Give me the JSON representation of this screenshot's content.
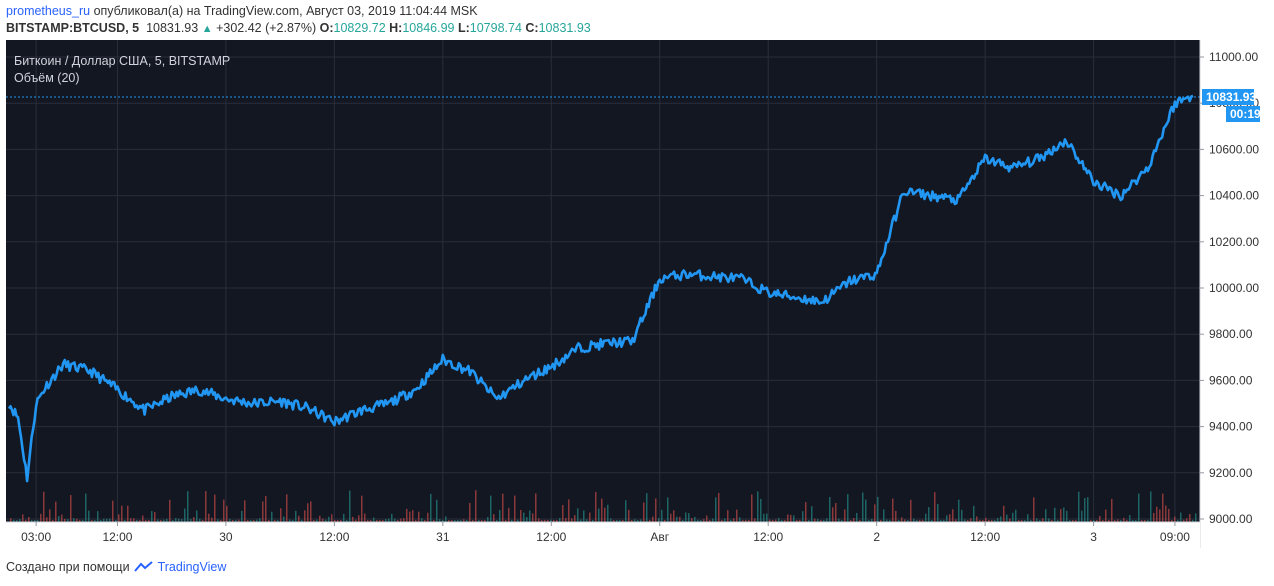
{
  "header": {
    "user": "prometheus_ru",
    "published_text": "опубликовал(а) на TradingView.com, Август 03, 2019 11:04:44 MSK",
    "symbol": "BITSTAMP:BTCUSD, 5",
    "last": "10831.93",
    "change": "+302.42 (+2.87%)",
    "open_label": "O:",
    "open": "10829.72",
    "high_label": "H:",
    "high": "10846.99",
    "low_label": "L:",
    "low": "10798.74",
    "close_label": "C:",
    "close": "10831.93"
  },
  "colors": {
    "background": "#131722",
    "line": "#2196f3",
    "price_tag": "#2196f3",
    "grid": "#2a2e39",
    "volume_up": "#26a69a",
    "volume_down": "#ef5350"
  },
  "footer": {
    "created_with": "Создано при помощи",
    "brand": "TradingView",
    "brand_icon": "tradingview-logo-icon"
  },
  "chart_data": {
    "type": "line",
    "title": "Биткоин / Доллар США, 5, BITSTAMP",
    "volume_label": "Объём (20)",
    "x_ticks": [
      "03:00",
      "12:00",
      "30",
      "12:00",
      "31",
      "12:00",
      "Авг",
      "12:00",
      "2",
      "12:00",
      "3",
      "09:00"
    ],
    "y_ticks": [
      "9000.00",
      "9200.00",
      "9400.00",
      "9600.00",
      "9800.00",
      "10000.00",
      "10200.00",
      "10400.00",
      "10600.00",
      "10800.00",
      "11000.00"
    ],
    "ylim": [
      9000,
      11000
    ],
    "last_price_tag": "10831.93",
    "countdown_tag": "00:19",
    "grid": true,
    "x": [
      "29 Jul 00:00",
      "29 Jul 01:00",
      "29 Jul 02:00",
      "29 Jul 03:00",
      "29 Jul 04:00",
      "29 Jul 06:00",
      "29 Jul 09:00",
      "29 Jul 12:00",
      "29 Jul 15:00",
      "29 Jul 18:00",
      "29 Jul 21:00",
      "30 Jul 00:00",
      "30 Jul 03:00",
      "30 Jul 06:00",
      "30 Jul 09:00",
      "30 Jul 12:00",
      "30 Jul 15:00",
      "30 Jul 18:00",
      "30 Jul 21:00",
      "31 Jul 00:00",
      "31 Jul 03:00",
      "31 Jul 06:00",
      "31 Jul 09:00",
      "31 Jul 12:00",
      "31 Jul 15:00",
      "31 Jul 18:00",
      "31 Jul 21:00",
      "01 Aug 00:00",
      "01 Aug 03:00",
      "01 Aug 06:00",
      "01 Aug 09:00",
      "01 Aug 12:00",
      "01 Aug 15:00",
      "01 Aug 18:00",
      "01 Aug 21:00",
      "02 Aug 00:00",
      "02 Aug 03:00",
      "02 Aug 06:00",
      "02 Aug 09:00",
      "02 Aug 12:00",
      "02 Aug 15:00",
      "02 Aug 18:00",
      "02 Aug 21:00",
      "03 Aug 00:00",
      "03 Aug 03:00",
      "03 Aug 06:00",
      "03 Aug 09:00",
      "03 Aug 11:00"
    ],
    "series": [
      {
        "values": [
          9500,
          9440,
          9180,
          9500,
          9570,
          9670,
          9640,
          9560,
          9470,
          9530,
          9560,
          9520,
          9500,
          9510,
          9480,
          9420,
          9470,
          9500,
          9560,
          9690,
          9640,
          9520,
          9600,
          9660,
          9740,
          9760,
          9770,
          10040,
          10060,
          10050,
          10040,
          9980,
          9960,
          9940,
          10030,
          10060,
          10420,
          10400,
          10380,
          10560,
          10520,
          10560,
          10640,
          10460,
          10400,
          10520,
          10800,
          10832
        ]
      }
    ]
  }
}
